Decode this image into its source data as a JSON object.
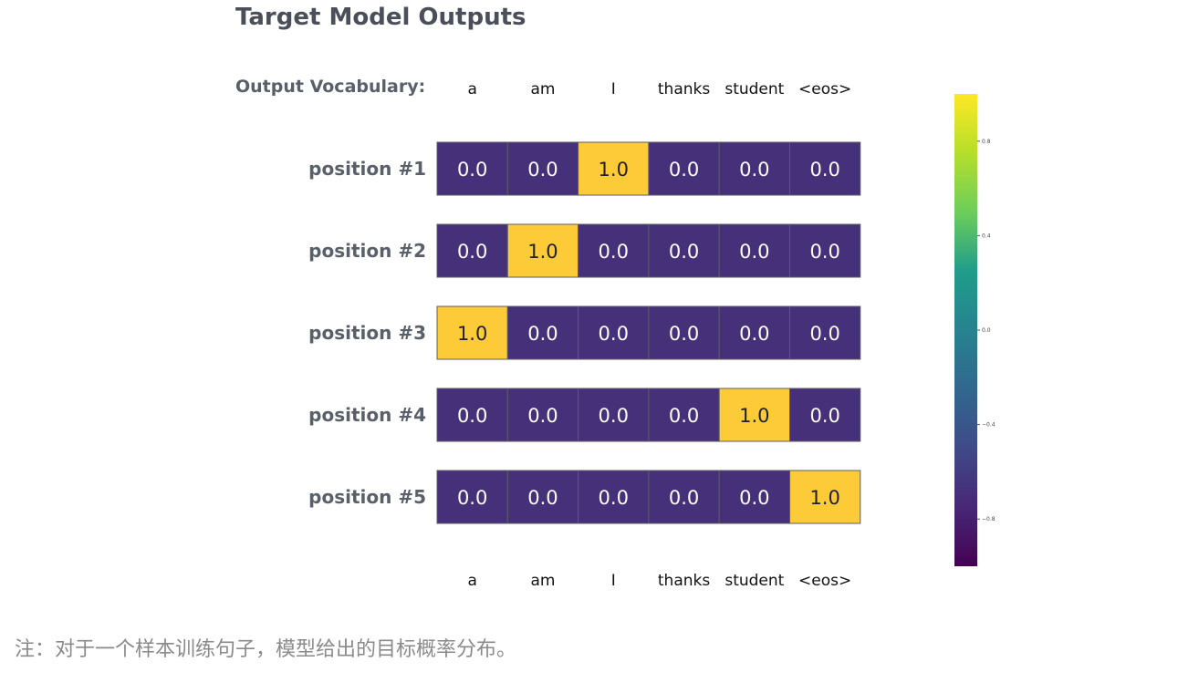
{
  "figure": {
    "caption": "注：对于一个样本训练句子，模型给出的目标概率分布。"
  },
  "chart_data": {
    "type": "heatmap",
    "title": "Target Model Outputs",
    "vocab_label": "Output Vocabulary:",
    "columns": [
      "a",
      "am",
      "I",
      "thanks",
      "student",
      "<eos>"
    ],
    "rows": [
      "position #1",
      "position #2",
      "position #3",
      "position #4",
      "position #5"
    ],
    "values": [
      [
        0.0,
        0.0,
        1.0,
        0.0,
        0.0,
        0.0
      ],
      [
        0.0,
        1.0,
        0.0,
        0.0,
        0.0,
        0.0
      ],
      [
        1.0,
        0.0,
        0.0,
        0.0,
        0.0,
        0.0
      ],
      [
        0.0,
        0.0,
        0.0,
        0.0,
        1.0,
        0.0
      ],
      [
        0.0,
        0.0,
        0.0,
        0.0,
        0.0,
        1.0
      ]
    ],
    "value_format": "0.0",
    "colors": {
      "low": "#46307a",
      "high": "#fecb38",
      "cell_border": "#5c5c66",
      "text_on_low": "#ffffff",
      "text_on_high": "#222222"
    },
    "colorbar": {
      "colormap": "viridis",
      "range": [
        -1.0,
        1.0
      ],
      "ticks": [
        0.8,
        0.4,
        0.0,
        -0.4,
        -0.8
      ],
      "tick_labels": [
        "0.8",
        "0.4",
        "0.0",
        "−0.4",
        "−0.8"
      ]
    }
  }
}
